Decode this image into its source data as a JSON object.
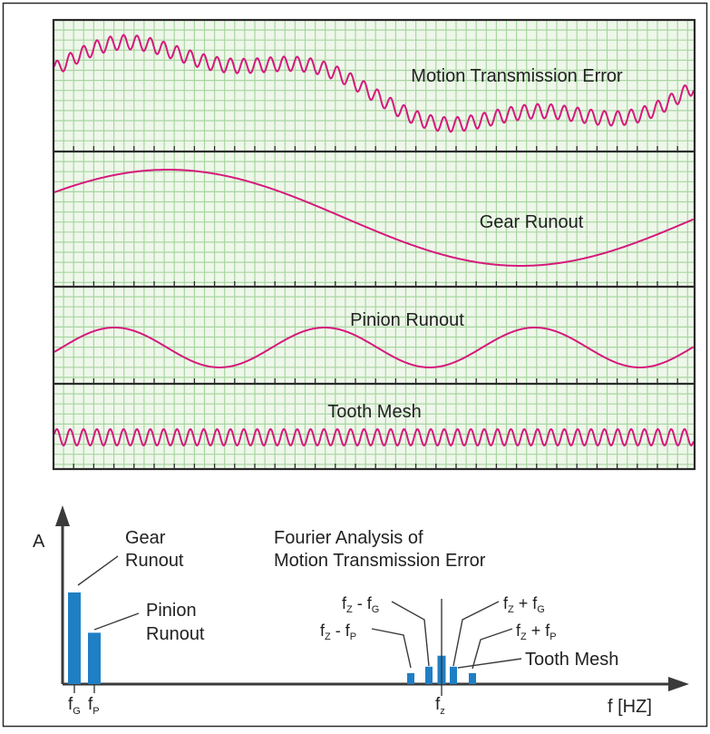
{
  "colors": {
    "wave": "#d6197c",
    "grid": "#a8d6a0",
    "panel_bg": "#eef7ea",
    "frame": "#2a2a2a",
    "bar": "#1f7fc4",
    "axis": "#3a3a3a"
  },
  "panels": [
    {
      "label": "Motion Transmission Error"
    },
    {
      "label": "Gear Runout"
    },
    {
      "label": "Pinion Runout"
    },
    {
      "label": "Tooth Mesh"
    }
  ],
  "spectrum": {
    "y_axis_label": "A",
    "x_axis_label": "f [HZ]",
    "title_line1": "Fourier Analysis of",
    "title_line2": "Motion Transmission Error",
    "gear_runout_line1": "Gear",
    "gear_runout_line2": "Runout",
    "pinion_runout_line1": "Pinion",
    "pinion_runout_line2": "Runout",
    "tooth_mesh_label": "Tooth Mesh",
    "tick_fg_main": "f",
    "tick_fg_sub": "G",
    "tick_fp_main": "f",
    "tick_fp_sub": "P",
    "tick_fz_main": "f",
    "tick_fz_sub": "z",
    "sb_fz_minus_fg": {
      "a": "f",
      "a_sub": "Z",
      "op": " - ",
      "b": "f",
      "b_sub": "G"
    },
    "sb_fz_minus_fp": {
      "a": "f",
      "a_sub": "Z",
      "op": " - ",
      "b": "f",
      "b_sub": "P"
    },
    "sb_fz_plus_fg": {
      "a": "f",
      "a_sub": "Z",
      "op": " + ",
      "b": "f",
      "b_sub": "G"
    },
    "sb_fz_plus_fp": {
      "a": "f",
      "a_sub": "Z",
      "op": " + ",
      "b": "f",
      "b_sub": "P"
    }
  },
  "chart_data": {
    "type": "bar",
    "categories": [
      "fG",
      "fP",
      "fz - fP",
      "fz - fG",
      "fz",
      "fz + fG",
      "fz + fP"
    ],
    "values": [
      1.0,
      0.56,
      0.12,
      0.19,
      0.31,
      0.19,
      0.12
    ],
    "frequencies": [
      1,
      2,
      18.5,
      19.5,
      20.5,
      21.5,
      22.5
    ],
    "xlabel": "f [HZ]",
    "ylabel": "A"
  }
}
